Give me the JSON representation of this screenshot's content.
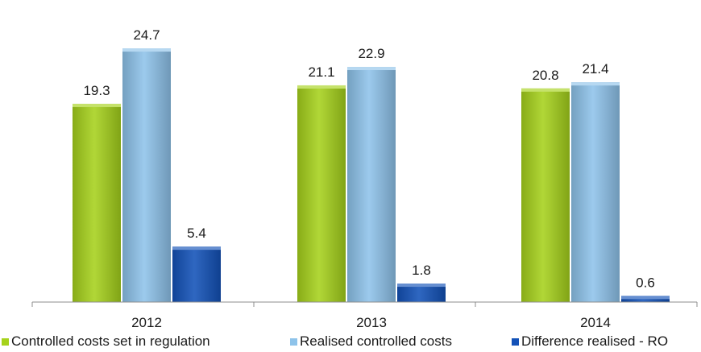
{
  "chart_data": {
    "type": "bar",
    "categories": [
      "2012",
      "2013",
      "2014"
    ],
    "series": [
      {
        "name": "Controlled costs set in regulation",
        "values": [
          19.3,
          21.1,
          20.8
        ],
        "color": "#a6d21c"
      },
      {
        "name": "Realised controlled costs",
        "values": [
          24.7,
          22.9,
          21.4
        ],
        "color": "#8ec3ea"
      },
      {
        "name": "Difference realised - RO",
        "values": [
          5.4,
          1.8,
          0.6
        ],
        "color": "#1352b8"
      }
    ],
    "data_labels": [
      [
        "19.3",
        "21.1",
        "20.8"
      ],
      [
        "24.7",
        "22.9",
        "21.4"
      ],
      [
        "5.4",
        "1.8",
        "0.6"
      ]
    ],
    "title": "",
    "xlabel": "",
    "ylabel": "",
    "ylim": [
      0,
      26
    ],
    "grid": false,
    "y_axis_visible": false,
    "legend_position": "bottom"
  }
}
